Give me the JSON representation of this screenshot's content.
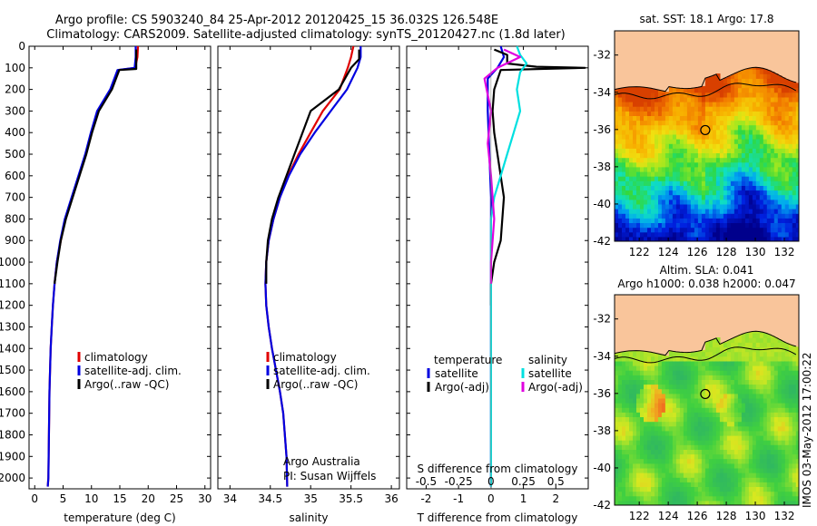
{
  "header": {
    "line1": "Argo profile: CS 5903240_84 25-Apr-2012 20120425_15 36.032S 126.548E",
    "line2": "Climatology: CARS2009. Satellite-adjusted climatology: synTS_20120427.nc (1.8d later)"
  },
  "side_label": "IMOS 03-May-2012 17:00:22",
  "colors": {
    "climatology": "#e00000",
    "satellite": "#0000e0",
    "argo": "#000000",
    "sal_satellite": "#00e0e0",
    "sal_argo": "#e000e0",
    "land": "#f9c59b"
  },
  "chart_data": [
    {
      "type": "line",
      "xlabel": "temperature (deg C)",
      "ylim": [
        2050,
        0
      ],
      "xlim": [
        -1,
        31
      ],
      "xticks": [
        0,
        5,
        10,
        15,
        20,
        25,
        30
      ],
      "yticks": [
        0,
        100,
        200,
        300,
        400,
        500,
        600,
        700,
        800,
        900,
        1000,
        1100,
        1200,
        1300,
        1400,
        1500,
        1600,
        1700,
        1800,
        1900,
        2000
      ],
      "legend": [
        "climatology",
        "satellite-adj. clim.",
        "Argo(..raw -QC)"
      ],
      "series": [
        {
          "name": "climatology",
          "color": "#e00000",
          "x": [
            18.2,
            18.1,
            17.7,
            14.8,
            13.5,
            11.2,
            10.0,
            9.0,
            7.8,
            6.6,
            5.4,
            4.6,
            3.9,
            3.5,
            3.2,
            3.0,
            2.8,
            2.6,
            2.5,
            2.4,
            2.3
          ],
          "y": [
            0,
            50,
            100,
            110,
            200,
            300,
            400,
            500,
            600,
            700,
            800,
            900,
            1000,
            1100,
            1200,
            1300,
            1400,
            1600,
            1800,
            2000,
            2040
          ]
        },
        {
          "name": "satellite-adj. clim.",
          "color": "#0000e0",
          "x": [
            17.8,
            17.8,
            17.6,
            14.6,
            13.3,
            11.0,
            9.9,
            8.9,
            7.7,
            6.5,
            5.3,
            4.5,
            3.9,
            3.5,
            3.2,
            3.0,
            2.8,
            2.6,
            2.5,
            2.4,
            2.3
          ],
          "y": [
            0,
            50,
            100,
            110,
            200,
            300,
            400,
            500,
            600,
            700,
            800,
            900,
            1000,
            1100,
            1200,
            1300,
            1400,
            1600,
            1800,
            2000,
            2040
          ]
        },
        {
          "name": "Argo(..raw -QC)",
          "color": "#000000",
          "x": [
            17.9,
            17.9,
            17.9,
            14.9,
            13.6,
            11.3,
            10.1,
            9.1,
            7.9,
            6.7,
            5.5,
            4.6,
            4.0,
            3.5
          ],
          "y": [
            15,
            60,
            105,
            110,
            200,
            300,
            400,
            500,
            600,
            700,
            800,
            900,
            1000,
            1100
          ]
        }
      ]
    },
    {
      "type": "line",
      "xlabel": "salinity",
      "ylim": [
        2050,
        0
      ],
      "xlim": [
        33.85,
        36.1
      ],
      "xticks": [
        34,
        34.5,
        35,
        35.5,
        36
      ],
      "legend": [
        "climatology",
        "satellite-adj. clim.",
        "Argo(..raw -QC)"
      ],
      "annotation": [
        "Argo Australia",
        "PI: Susan Wijffels"
      ],
      "series": [
        {
          "name": "climatology",
          "color": "#e00000",
          "x": [
            35.53,
            35.5,
            35.46,
            35.36,
            35.15,
            35.0,
            34.85,
            34.72,
            34.62,
            34.54,
            34.48,
            34.45,
            34.44,
            34.45,
            34.48,
            34.52,
            34.57,
            34.62,
            34.66,
            34.7,
            34.71
          ],
          "y": [
            0,
            50,
            100,
            200,
            300,
            400,
            500,
            600,
            700,
            800,
            900,
            1000,
            1100,
            1200,
            1300,
            1400,
            1500,
            1600,
            1700,
            1900,
            2040
          ]
        },
        {
          "name": "satellite-adj. clim.",
          "color": "#0000e0",
          "x": [
            35.62,
            35.62,
            35.58,
            35.45,
            35.25,
            35.05,
            34.87,
            34.73,
            34.62,
            34.54,
            34.48,
            34.45,
            34.44,
            34.45,
            34.48,
            34.52,
            34.57,
            34.62,
            34.66,
            34.7,
            34.71
          ],
          "y": [
            0,
            50,
            100,
            200,
            300,
            400,
            500,
            600,
            700,
            800,
            900,
            1000,
            1100,
            1200,
            1300,
            1400,
            1500,
            1600,
            1700,
            1900,
            2040
          ]
        },
        {
          "name": "Argo(..raw -QC)",
          "color": "#000000",
          "x": [
            35.6,
            35.6,
            35.5,
            35.35,
            35.0,
            34.9,
            34.8,
            34.7,
            34.6,
            34.52,
            34.47,
            34.45,
            34.45
          ],
          "y": [
            15,
            60,
            100,
            200,
            300,
            400,
            500,
            600,
            700,
            800,
            900,
            1000,
            1100
          ]
        }
      ]
    },
    {
      "type": "line",
      "xlabel": "T difference from climatology",
      "toplabel": "S difference from climatology",
      "ylim": [
        2050,
        0
      ],
      "xlim": [
        -2.6,
        3.0
      ],
      "xticks": [
        -2,
        -1,
        0,
        1,
        2
      ],
      "top_xticks": [
        "-0.5",
        "-0.25",
        "0",
        "0.25",
        "0.5"
      ],
      "top_xticks_pos": [
        -2,
        -1,
        0,
        1,
        2
      ],
      "legend_left": {
        "title": "temperature",
        "items": [
          "satellite",
          "Argo(-adj)"
        ]
      },
      "legend_right": {
        "title": "salinity",
        "items": [
          "satellite",
          "Argo(-adj)"
        ]
      },
      "series": [
        {
          "name": "temperature satellite",
          "color": "#0000e0",
          "x": [
            0.3,
            0.4,
            0.2,
            -0.1,
            -0.1,
            -0.05,
            0.0,
            0.0,
            0.0,
            0.0,
            0.0,
            0.0,
            0.0,
            0.0,
            0.0
          ],
          "y": [
            0,
            50,
            100,
            150,
            300,
            500,
            700,
            900,
            1100,
            1300,
            1500,
            1700,
            1900,
            2000,
            2040
          ]
        },
        {
          "name": "temperature Argo(-adj)",
          "color": "#000000",
          "x": [
            0.1,
            0.5,
            0.5,
            1.4,
            2.9,
            0.3,
            0.1,
            0.05,
            0.1,
            0.2,
            0.4,
            0.3,
            0.1,
            0.0,
            0.0
          ],
          "y": [
            15,
            40,
            80,
            95,
            100,
            110,
            200,
            300,
            400,
            500,
            700,
            900,
            1000,
            1100,
            1200
          ]
        },
        {
          "name": "salinity satellite",
          "color": "#00e0e0",
          "x": [
            0.8,
            0.9,
            1.1,
            0.9,
            0.8,
            0.9,
            0.7,
            0.5,
            0.3,
            0.1,
            0.0,
            0.0,
            0.0,
            0.0,
            0.0
          ],
          "y": [
            0,
            40,
            80,
            120,
            200,
            300,
            400,
            500,
            600,
            700,
            800,
            1000,
            1400,
            1800,
            2040
          ]
        },
        {
          "name": "salinity Argo(-adj)",
          "color": "#e000e0",
          "x": [
            0.4,
            0.9,
            0.2,
            -0.2,
            0.0,
            -0.1,
            0.0,
            0.1,
            0.0,
            0.0
          ],
          "y": [
            15,
            50,
            100,
            150,
            300,
            450,
            600,
            800,
            1000,
            1100
          ]
        }
      ]
    },
    {
      "type": "heatmap",
      "title": "sat. SST: 18.1  Argo: 17.8",
      "xlim": [
        120.3,
        133.0
      ],
      "ylim": [
        -42,
        -30.7
      ],
      "xticks": [
        122,
        124,
        126,
        128,
        130,
        132
      ],
      "yticks": [
        -32,
        -34,
        -36,
        -38,
        -40,
        -42
      ],
      "marker": {
        "lon": 126.55,
        "lat": -36.03
      }
    },
    {
      "type": "heatmap",
      "title": "Altim. SLA: 0.041",
      "subtitle": "Argo h1000: 0.038  h2000: 0.047",
      "xlim": [
        120.3,
        133.0
      ],
      "ylim": [
        -42,
        -30.7
      ],
      "xticks": [
        122,
        124,
        126,
        128,
        130,
        132
      ],
      "yticks": [
        -32,
        -34,
        -36,
        -38,
        -40,
        -42
      ],
      "marker": {
        "lon": 126.55,
        "lat": -36.03
      }
    }
  ]
}
